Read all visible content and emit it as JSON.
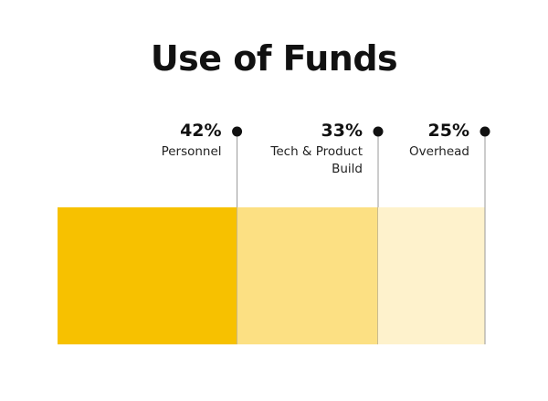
{
  "chart_data": {
    "type": "bar",
    "title": "Use of Funds",
    "orientation": "stacked-horizontal",
    "categories": [
      "Personnel",
      "Tech & Product Build",
      "Overhead"
    ],
    "label_lines": [
      [
        "Personnel"
      ],
      [
        "Tech & Product",
        "Build"
      ],
      [
        "Overhead"
      ]
    ],
    "values": [
      42,
      33,
      25
    ],
    "value_labels": [
      "42%",
      "33%",
      "25%"
    ],
    "colors": [
      "#F7C100",
      "#FCE083",
      "#FEF2CC"
    ],
    "marker_color": "#111111",
    "leader_color": "#999999"
  }
}
